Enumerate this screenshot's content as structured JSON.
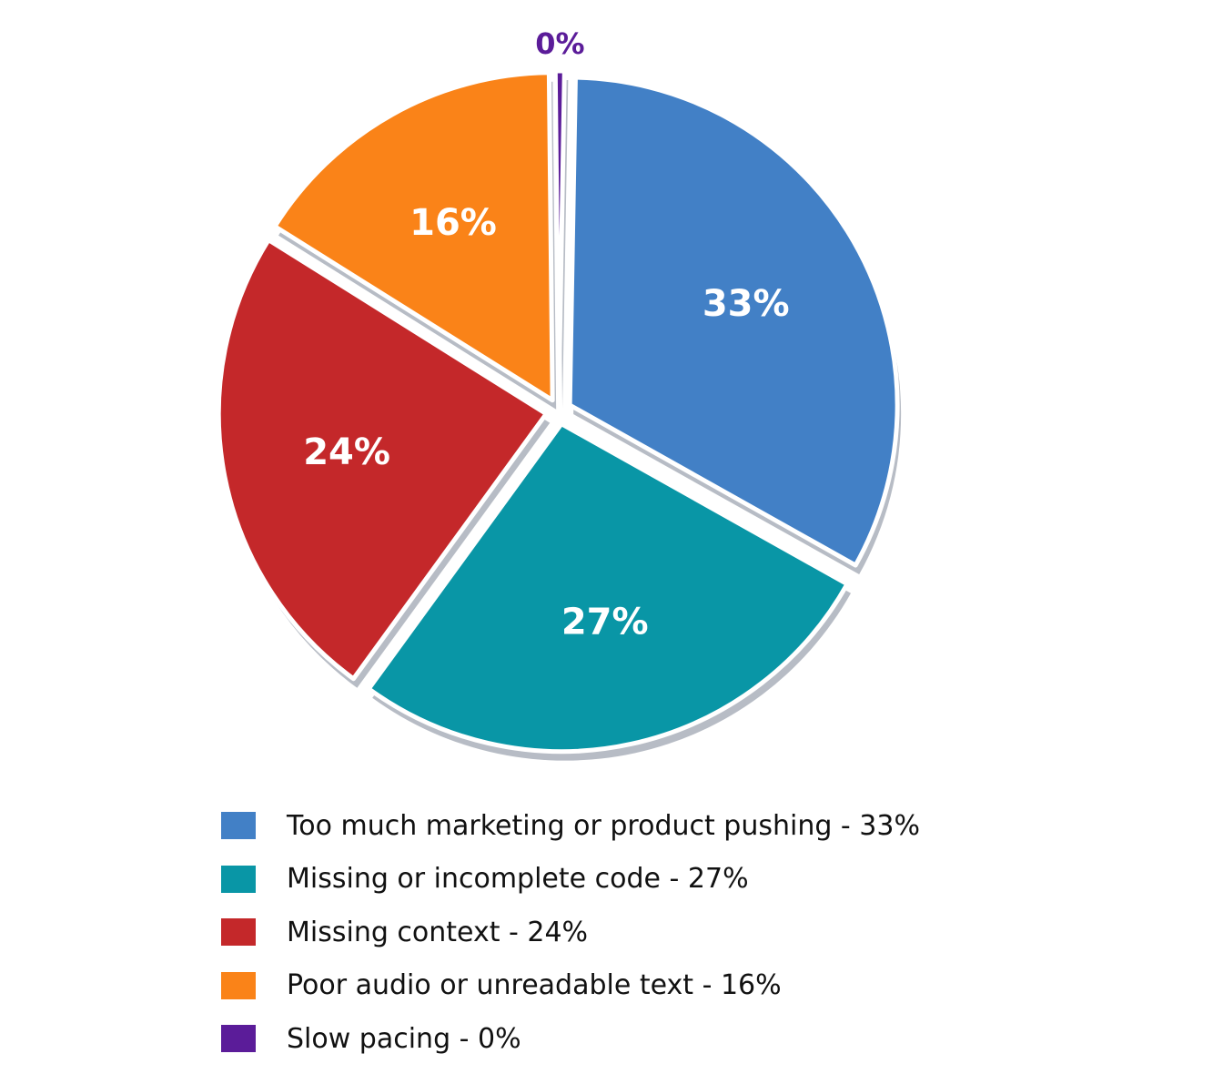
{
  "chart_data": {
    "type": "pie",
    "title": "",
    "categories": [
      "Too much marketing or product pushing",
      "Missing or incomplete code",
      "Missing context",
      "Poor audio or unreadable text",
      "Slow pacing"
    ],
    "values": [
      33,
      27,
      24,
      16,
      0
    ],
    "slice_labels": [
      "33%",
      "27%",
      "24%",
      "16%",
      "0%"
    ],
    "colors": [
      "#4280c6",
      "#0996a6",
      "#c4282a",
      "#fa8318",
      "#5b1c99"
    ],
    "legend": {
      "placement": "bottom",
      "entries": [
        {
          "label": "Too much marketing or product pushing - 33%",
          "color": "#4280c6"
        },
        {
          "label": "Missing or incomplete code - 27%",
          "color": "#0996a6"
        },
        {
          "label": "Missing context - 24%",
          "color": "#c4282a"
        },
        {
          "label": "Poor audio or unreadable text - 16%",
          "color": "#fa8318"
        },
        {
          "label": "Slow pacing - 0%",
          "color": "#5b1c99"
        }
      ]
    }
  }
}
